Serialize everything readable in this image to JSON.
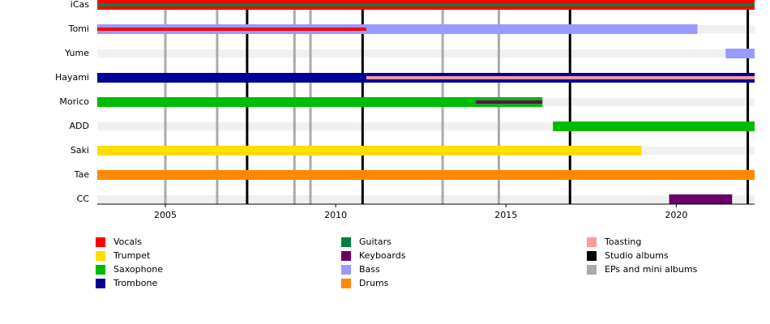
{
  "chart_data": {
    "type": "timeline",
    "xlim": [
      2003,
      2022.3
    ],
    "xticks": [
      2005,
      2010,
      2015,
      2020
    ],
    "members": [
      {
        "name": "iCas",
        "bars": [
          {
            "role": "Vocals",
            "start": 2003,
            "end": 2022.3
          },
          {
            "role": "Guitars",
            "start": 2003,
            "end": 2022.3
          }
        ]
      },
      {
        "name": "Tomi",
        "bars": [
          {
            "role": "Bass",
            "start": 2003,
            "end": 2020.62
          },
          {
            "role": "Vocals",
            "start": 2003,
            "end": 2010.9
          }
        ]
      },
      {
        "name": "Yume",
        "bars": [
          {
            "role": "Bass",
            "start": 2021.45,
            "end": 2022.3
          }
        ]
      },
      {
        "name": "Hayami",
        "bars": [
          {
            "role": "Trombone",
            "start": 2003,
            "end": 2022.3
          },
          {
            "role": "Toasting",
            "start": 2010.9,
            "end": 2022.3
          }
        ]
      },
      {
        "name": "Morico",
        "bars": [
          {
            "role": "Saxophone",
            "start": 2003,
            "end": 2016.07
          },
          {
            "role": "Keyboards",
            "start": 2014.12,
            "end": 2016.07
          }
        ]
      },
      {
        "name": "ADD",
        "bars": [
          {
            "role": "Saxophone",
            "start": 2016.38,
            "end": 2022.3
          }
        ]
      },
      {
        "name": "Saki",
        "bars": [
          {
            "role": "Trumpet",
            "start": 2003,
            "end": 2018.98
          }
        ]
      },
      {
        "name": "Tae",
        "bars": [
          {
            "role": "Drums",
            "start": 2003,
            "end": 2022.3
          }
        ]
      },
      {
        "name": "CC",
        "bars": [
          {
            "role": "Keyboards",
            "start": 2019.79,
            "end": 2021.64
          }
        ]
      }
    ],
    "roles": [
      {
        "name": "Vocals",
        "color": "#ff0000"
      },
      {
        "name": "Trumpet",
        "color": "#ffdd00"
      },
      {
        "name": "Saxophone",
        "color": "#00bb00"
      },
      {
        "name": "Trombone",
        "color": "#000099"
      },
      {
        "name": "Guitars",
        "color": "#008040"
      },
      {
        "name": "Keyboards",
        "color": "#6a006a"
      },
      {
        "name": "Bass",
        "color": "#9999ff"
      },
      {
        "name": "Drums",
        "color": "#ff8800"
      },
      {
        "name": "Toasting",
        "color": "#ff9999"
      }
    ],
    "release_lines": [
      {
        "name": "Studio albums",
        "color": "#000000",
        "values": [
          2007.4,
          2010.79,
          2016.88,
          2022.1
        ]
      },
      {
        "name": "EPs and mini albums",
        "color": "#aaaaaa",
        "values": [
          2005.0,
          2006.52,
          2008.79,
          2009.26,
          2013.14,
          2014.79
        ]
      }
    ]
  }
}
